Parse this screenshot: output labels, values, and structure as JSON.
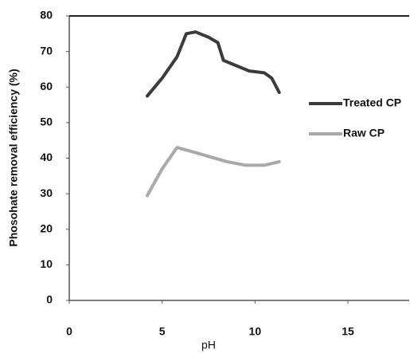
{
  "chart_data": {
    "type": "line",
    "x_label": "pH",
    "y_label": "Phosohate removal efficiency (%)",
    "xlim": [
      0,
      18.3
    ],
    "xticks": [
      0,
      5,
      10,
      15
    ],
    "ylim": [
      0,
      80
    ],
    "yticks": [
      0,
      10,
      20,
      30,
      40,
      50,
      60,
      70,
      80
    ],
    "legend": "right",
    "series": [
      {
        "name": "Treated CP",
        "color": "#3b3b3b",
        "x": [
          4.2,
          5,
          5.8,
          6.3,
          6.8,
          7.5,
          8,
          8.3,
          9,
          9.7,
          10.5,
          10.9,
          11.3
        ],
        "values": [
          57.5,
          62.5,
          68.5,
          75,
          75.5,
          74,
          72.5,
          67.5,
          66,
          64.5,
          64,
          62.5,
          58.5
        ]
      },
      {
        "name": "Raw CP",
        "color": "#a9a9a9",
        "x": [
          4.2,
          5,
          5.8,
          6.5,
          7.5,
          8.5,
          9.5,
          10.5,
          11.3
        ],
        "values": [
          29.5,
          37,
          43,
          42,
          40.5,
          39,
          38,
          38,
          39
        ]
      }
    ]
  }
}
